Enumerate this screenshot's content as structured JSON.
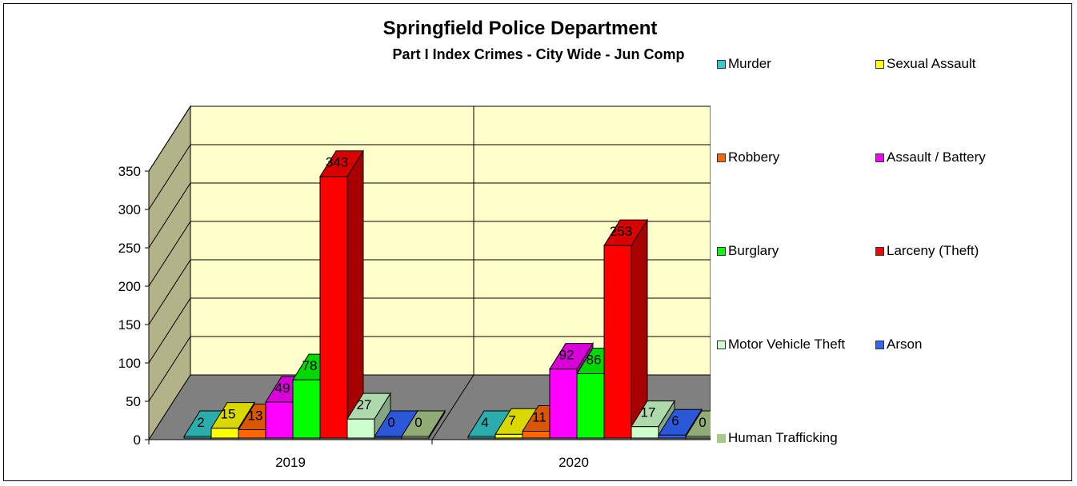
{
  "colors": {
    "wall": "#ffffcc",
    "side_wall": "#b3b38a",
    "floor": "#808080"
  },
  "chart_data": {
    "type": "bar",
    "title": "Springfield Police Department",
    "subtitle": "Part I Index Crimes - City Wide - Jun Comp",
    "categories": [
      "2019",
      "2020"
    ],
    "ylim": [
      0,
      350
    ],
    "yticks": [
      0,
      50,
      100,
      150,
      200,
      250,
      300,
      350
    ],
    "grid": true,
    "legend_position": "right",
    "series": [
      {
        "name": "Murder",
        "values": [
          2,
          4
        ],
        "color": "#33cccc"
      },
      {
        "name": "Sexual Assault",
        "values": [
          15,
          7
        ],
        "color": "#ffff00"
      },
      {
        "name": "Robbery",
        "values": [
          13,
          11
        ],
        "color": "#ff6600"
      },
      {
        "name": "Assault / Battery",
        "values": [
          49,
          92
        ],
        "color": "#ff00ff"
      },
      {
        "name": "Burglary",
        "values": [
          78,
          86
        ],
        "color": "#00ff00"
      },
      {
        "name": "Larceny (Theft)",
        "values": [
          343,
          253
        ],
        "color": "#ff0000"
      },
      {
        "name": "Motor Vehicle Theft",
        "values": [
          27,
          17
        ],
        "color": "#ccffcc"
      },
      {
        "name": "Arson",
        "values": [
          0,
          6
        ],
        "color": "#3366ff"
      },
      {
        "name": "Human Trafficking",
        "values": [
          0,
          0
        ],
        "color": "#a9c98a"
      }
    ]
  }
}
